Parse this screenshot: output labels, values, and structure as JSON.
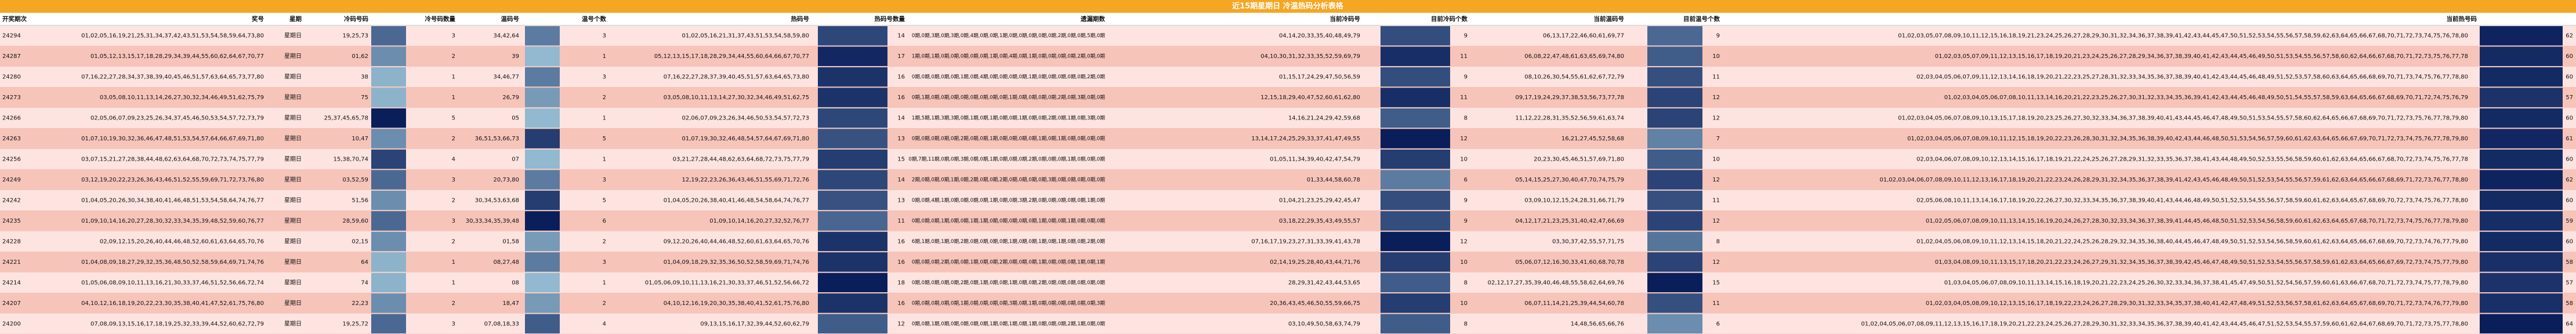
{
  "title": "近15期星期日 冷温热码分析表格",
  "table": {
    "headers": [
      "开奖期次",
      "奖号",
      "星期",
      "冷码号码",
      "冷号码数量",
      "温码号",
      "温号个数",
      "热码号",
      "热码号数量",
      "遗漏期数",
      "当前冷码号",
      "目前冷码个数",
      "当前温码号",
      "目前温号个数",
      "当前热号码"
    ],
    "rows": [
      [
        "24294",
        "01,02,05,16,19,21,25,31,34,37,42,43,51,53,54,58,59,64,73,80",
        "星期日",
        "19,25,73",
        3,
        "34,42,64",
        3,
        "01,02,05,16,21,31,37,43,51,53,54,58,59,80",
        14,
        "0期,0期,3期,0期,3期,0期,4期,0期,0期,1期,0期,0期,0期,0期,0期,2期,0期,0期,5期,0期",
        "04,14,20,33,35,40,48,49,79",
        9,
        "06,13,17,22,46,60,61,69,77",
        9,
        "01,02,03,05,07,08,09,10,11,12,15,16,18,19,21,23,24,25,26,27,28,29,30,31,32,34,36,37,38,39,41,42,43,44,45,47,50,51,52,53,54,55,56,57,58,59,62,63,64,65,66,67,68,70,71,72,73,74,75,76,78,80",
        62
      ],
      [
        "24287",
        "01,05,12,13,15,17,18,28,29,34,39,44,55,60,62,64,67,70,77",
        "星期日",
        "01,62",
        2,
        "39",
        1,
        "05,12,13,15,17,18,28,29,34,44,55,60,64,66,67,70,77",
        17,
        "1期,0期,1期,0期,0期,0期,0期,0期,1期,0期,4期,0期,1期,0期,0期,0期,0期,2期,0期,0期",
        "04,10,30,31,32,33,35,52,59,69,79",
        11,
        "06,08,22,47,48,61,63,65,69,74,80",
        10,
        "01,02,03,05,07,09,11,12,13,15,16,17,18,19,20,21,23,24,25,26,27,28,29,34,36,37,38,39,40,41,42,43,44,45,46,49,50,51,53,54,55,56,57,58,60,62,64,66,67,68,70,71,72,73,75,76,77,78",
        60
      ],
      [
        "24280",
        "07,16,22,27,28,34,37,38,39,40,45,46,51,57,63,64,65,73,77,80",
        "星期日",
        "38",
        1,
        "34,46,77",
        3,
        "07,16,22,27,28,37,39,40,45,51,57,63,64,65,73,80",
        16,
        "0期,0期,0期,0期,0期,1期,0期,4期,0期,0期,0期,0期,1期,0期,0期,0期,0期,0期,2期,0期",
        "01,15,17,24,29,47,50,56,59",
        9,
        "08,10,26,30,54,55,61,62,67,72,79",
        11,
        "02,03,04,05,06,07,09,11,12,13,14,16,18,19,20,21,22,23,25,27,28,31,32,33,34,35,36,37,38,39,40,41,42,43,44,45,46,48,49,51,52,53,57,58,60,63,64,65,66,68,69,70,71,73,74,75,76,77,78,80",
        60
      ],
      [
        "24273",
        "03,05,08,10,11,13,14,26,27,30,32,34,46,49,51,62,75,79",
        "星期日",
        "75",
        1,
        "26,79",
        2,
        "03,05,08,10,11,13,14,27,30,32,34,46,49,51,62,75",
        16,
        "0期,1期,0期,0期,0期,0期,0期,0期,0期,0期,1期,0期,0期,0期,0期,2期,0期,3期,0期,0期",
        "12,15,18,29,40,47,52,60,61,62,80",
        11,
        "09,17,19,24,29,37,38,53,56,73,77,78",
        12,
        "01,02,03,04,05,06,07,08,10,11,13,14,16,20,21,22,23,25,26,27,30,31,32,33,34,35,36,39,41,42,43,44,45,46,48,49,50,51,54,55,57,58,59,63,64,65,66,67,68,69,70,71,72,74,75,76,79",
        57
      ],
      [
        "24266",
        "02,05,06,07,09,23,25,26,34,37,45,46,50,53,54,57,72,73,79",
        "星期日",
        "25,37,45,65,78",
        5,
        "05",
        1,
        "02,06,07,09,23,26,34,46,50,53,54,57,72,73",
        14,
        "1期,5期,1期,3期,3期,0期,1期,0期,1期,0期,0期,1期,0期,0期,2期,0期,1期,0期,3期,0期",
        "14,16,21,24,29,42,59,68",
        8,
        "11,12,22,28,31,35,52,56,59,61,63,74",
        12,
        "01,02,03,04,05,06,07,08,09,10,13,15,17,18,19,20,23,25,26,27,30,32,33,34,36,37,38,39,40,41,43,44,45,46,47,48,49,50,51,53,54,55,57,58,60,62,64,65,66,67,68,69,70,71,72,73,75,76,77,78,79,80",
        60
      ],
      [
        "24263",
        "01,07,10,19,30,32,36,46,47,48,51,53,54,57,64,66,67,69,71,80",
        "星期日",
        "10,47",
        2,
        "36,51,53,66,73",
        5,
        "01,07,19,30,32,46,48,54,57,64,67,69,71,80",
        13,
        "0期,0期,0期,0期,0期,2期,0期,0期,1期,0期,0期,0期,0期,1期,0期,1期,0期,0期,0期,0期",
        "13,14,17,24,25,29,33,37,41,47,49,55",
        12,
        "16,21,27,45,52,58,68",
        7,
        "01,02,03,04,05,06,07,08,09,10,11,12,15,18,19,20,22,23,26,28,30,31,32,34,35,36,38,39,40,42,43,44,46,48,50,51,53,54,56,57,59,60,61,62,63,64,65,66,67,69,70,71,72,73,74,75,76,77,78,79,80",
        61
      ],
      [
        "24256",
        "03,07,15,21,27,28,38,44,48,62,63,64,68,70,72,73,74,75,77,79",
        "星期日",
        "15,38,70,74",
        4,
        "07",
        1,
        "03,21,27,28,44,48,62,63,64,68,72,73,75,77,79",
        15,
        "0期,7期,11期,0期,0期,3期,0期,0期,1期,0期,0期,0期,2期,0期,0期,0期,1期,0期,0期,0期",
        "01,05,11,34,39,40,42,47,54,79",
        10,
        "20,23,30,45,46,51,57,69,71,80",
        10,
        "02,03,04,06,07,08,09,10,12,13,14,15,16,17,18,19,21,22,24,25,26,27,28,29,31,32,33,35,36,37,38,41,43,44,48,49,50,52,53,55,56,58,59,60,61,62,63,64,65,66,67,68,70,72,73,74,75,76,77,78",
        60
      ],
      [
        "24249",
        "03,12,19,20,22,23,26,36,43,46,51,52,55,59,69,71,72,73,76,80",
        "星期日",
        "03,52,59",
        3,
        "20,73,80",
        3,
        "12,19,22,23,26,36,43,46,51,55,69,71,72,76",
        14,
        "2期,0期,0期,0期,1期,0期,2期,0期,0期,2期,0期,0期,0期,0期,3期,0期,0期,0期,0期,0期",
        "01,33,44,58,60,78",
        6,
        "05,14,15,25,27,30,40,47,70,74,75,79",
        12,
        "01,02,03,04,06,07,08,09,10,11,12,13,16,17,18,19,20,21,22,23,24,26,28,29,31,32,34,35,36,37,38,39,41,42,43,45,46,48,49,50,51,52,53,54,55,56,57,59,61,62,63,64,65,66,67,68,69,71,72,73,76,77,78,80",
        62
      ],
      [
        "24242",
        "01,04,05,20,26,30,34,38,40,41,46,48,51,53,54,58,64,74,76,77",
        "星期日",
        "51,56",
        2,
        "30,34,53,63,68",
        5,
        "01,04,05,20,26,38,40,41,46,48,54,58,64,74,76,77",
        13,
        "0期,0期,4期,1期,0期,0期,0期,0期,1期,0期,0期,3期,2期,0期,0期,0期,0期,0期,1期,0期",
        "01,04,21,23,25,29,42,45,47",
        9,
        "03,09,10,12,15,24,28,31,66,71,79",
        11,
        "02,05,06,08,10,11,13,14,16,17,18,19,20,22,26,27,30,32,33,34,35,36,37,38,39,40,41,43,44,46,48,49,50,51,52,53,54,55,56,57,58,59,60,61,62,63,64,65,67,68,69,70,72,73,74,75,76,77,78,80",
        60
      ],
      [
        "24235",
        "01,09,10,14,16,20,27,28,30,32,33,34,35,39,48,52,59,60,76,77",
        "星期日",
        "28,59,60",
        3,
        "30,33,34,35,39,48",
        6,
        "01,09,10,14,16,20,27,32,52,76,77",
        11,
        "0期,0期,0期,1期,0期,0期,1期,1期,0期,0期,0期,0期,0期,1期,0期,0期,1期,0期,0期,0期",
        "03,18,22,29,35,43,49,55,57",
        9,
        "04,12,17,21,23,25,31,40,42,47,66,69",
        12,
        "01,02,05,06,07,08,09,10,11,13,14,15,16,19,20,24,26,27,28,30,32,33,34,36,37,38,39,41,44,45,46,48,50,51,52,53,54,56,58,59,60,61,62,63,64,65,67,68,70,71,72,73,74,75,76,77,78,79,80",
        59
      ],
      [
        "24228",
        "02,09,12,15,20,26,40,44,46,48,52,60,61,63,64,65,70,76",
        "星期日",
        "02,15",
        2,
        "01,58",
        2,
        "09,12,20,26,40,44,46,48,52,60,61,63,64,65,70,76",
        16,
        "6期,1期,0期,1期,0期,2期,0期,0期,0期,0期,1期,0期,0期,1期,0期,1期,0期,0期,2期,0期",
        "07,16,17,19,23,27,31,33,39,41,43,78",
        12,
        "03,30,37,42,55,57,71,75",
        8,
        "01,02,04,05,06,08,09,10,11,12,13,14,15,18,20,21,22,24,25,26,28,29,32,34,35,36,38,40,44,45,46,47,48,49,50,51,52,53,54,56,58,59,60,61,62,63,64,65,66,67,68,69,70,72,73,74,76,77,79,80",
        60
      ],
      [
        "24221",
        "01,04,08,09,18,27,29,32,35,36,48,50,52,58,59,64,69,71,74,76",
        "星期日",
        "64",
        1,
        "08,27,48",
        3,
        "01,04,09,18,29,32,35,36,50,52,58,59,69,71,74,76",
        16,
        "0期,0期,0期,2期,0期,0期,1期,0期,0期,2期,0期,0期,0期,1期,0期,0期,0期,1期,0期,1期",
        "02,14,19,25,28,40,43,44,71,76",
        10,
        "05,06,07,12,16,30,33,41,60,68,70,78",
        12,
        "01,03,04,08,09,10,11,13,15,17,18,20,21,22,23,24,26,27,29,31,32,34,35,36,37,38,39,42,45,46,47,48,49,50,51,52,53,54,55,56,57,58,59,61,62,63,64,65,66,67,69,72,73,74,75,77,79,80",
        58
      ],
      [
        "24214",
        "01,05,06,08,09,10,11,13,16,21,30,33,37,46,51,52,56,66,72,74",
        "星期日",
        "74",
        1,
        "08",
        1,
        "01,05,06,09,10,11,13,16,21,30,33,37,46,51,52,56,66,72",
        18,
        "0期,0期,0期,0期,0期,2期,0期,1期,0期,0期,1期,0期,0期,2期,0期,0期,0期,0期,0期,0期",
        "28,29,31,42,43,44,53,65",
        8,
        "02,12,17,27,35,39,40,46,48,55,58,62,64,69,76",
        15,
        "01,03,04,05,06,07,08,09,10,11,13,14,15,16,18,19,20,21,22,23,24,25,26,30,32,33,34,36,37,38,41,45,47,49,50,51,52,54,56,57,59,60,61,63,66,67,68,70,71,72,73,74,75,77,78,79,80",
        57
      ],
      [
        "24207",
        "04,10,12,16,18,19,20,22,23,30,35,38,40,41,47,52,61,75,76,80",
        "星期日",
        "22,23",
        2,
        "18,47",
        2,
        "04,10,12,16,19,20,30,35,38,40,41,52,61,75,76,80",
        16,
        "0期,0期,0期,0期,0期,1期,0期,0期,0期,0期,3期,0期,1期,0期,0期,0期,0期,0期,0期,3期",
        "20,36,43,45,46,50,55,59,66,75",
        10,
        "06,07,11,14,21,25,39,44,54,60,78",
        11,
        "01,02,03,04,05,08,09,10,12,13,15,16,17,18,19,22,23,24,26,27,28,29,30,31,32,33,34,35,37,38,40,41,42,47,48,49,51,52,53,56,57,58,61,62,63,64,65,67,68,69,70,71,72,73,74,76,77,79,80",
        58
      ],
      [
        "24200",
        "07,08,09,13,15,16,17,18,19,25,32,33,39,44,52,60,62,72,79",
        "星期日",
        "19,25,72",
        3,
        "07,08,18,33",
        4,
        "09,13,15,16,17,32,39,44,52,60,62,79",
        12,
        "0期,0期,1期,0期,0期,0期,0期,0期,1期,0期,1期,0期,1期,0期,0期,0期,2期,1期,0期,0期",
        "03,10,49,50,58,63,74,79",
        8,
        "14,48,56,65,66,76",
        6,
        "01,02,04,05,06,07,08,09,11,12,13,15,16,17,18,19,20,21,22,23,24,25,26,27,28,29,30,31,32,33,34,35,36,37,38,39,40,41,42,43,44,45,46,47,51,52,53,54,55,57,59,60,61,62,64,67,68,69,70,71,72,73,75,77,78,80",
        64
      ]
    ]
  }
}
